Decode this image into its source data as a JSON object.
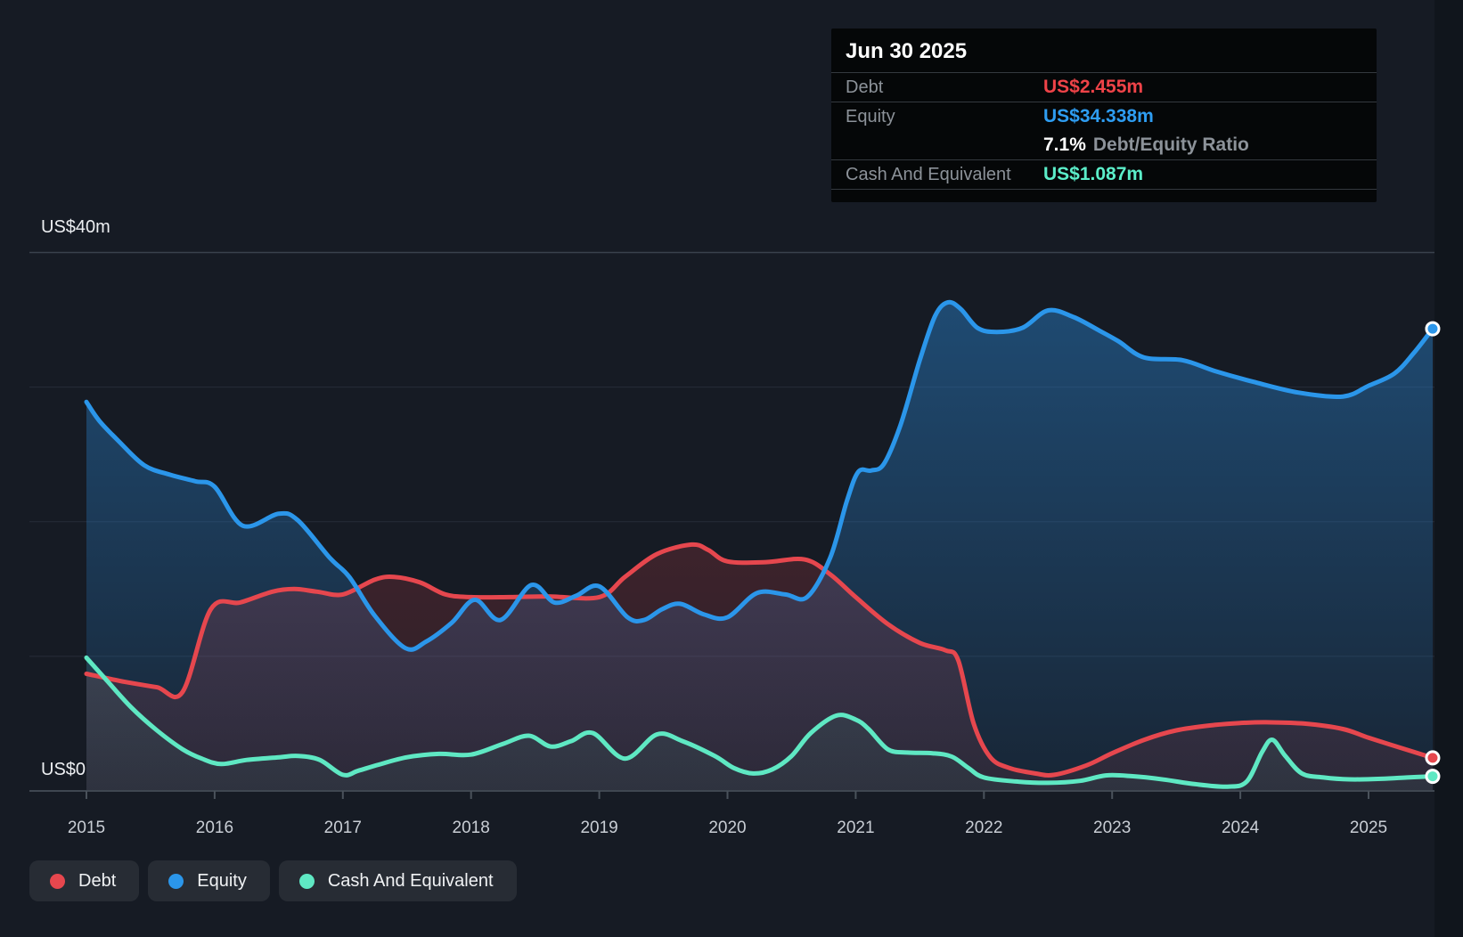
{
  "y_axis": {
    "top_label": "US$40m",
    "zero_label": "US$0"
  },
  "x_axis": {
    "tick_labels": [
      "2015",
      "2016",
      "2017",
      "2018",
      "2019",
      "2020",
      "2021",
      "2022",
      "2023",
      "2024",
      "2025"
    ]
  },
  "tooltip": {
    "title": "Jun 30 2025",
    "debt_label": "Debt",
    "debt_value": "US$2.455m",
    "equity_label": "Equity",
    "equity_value": "US$34.338m",
    "ratio_value": "7.1%",
    "ratio_label": "Debt/Equity Ratio",
    "cash_label": "Cash And Equivalent",
    "cash_value": "US$1.087m"
  },
  "legend": {
    "items": [
      {
        "label": "Debt",
        "color": "#e6474e"
      },
      {
        "label": "Equity",
        "color": "#2b96ea"
      },
      {
        "label": "Cash And Equivalent",
        "color": "#5fe8c3"
      }
    ]
  },
  "colors": {
    "background": "#161b24",
    "outside_band": "#10151c",
    "grid_mid": "#262d38",
    "grid_top": "#3a424d",
    "axis_line": "#3f4751",
    "tick": "#4a525b",
    "debt": "#e6474e",
    "equity": "#2b96ea",
    "cash": "#5fe8c3"
  },
  "chart_data": {
    "type": "area",
    "title": "Debt to Equity history",
    "x_range": [
      2015,
      2025.5
    ],
    "y_range": [
      0,
      40
    ],
    "y_ticks": [
      0,
      10,
      20,
      30,
      40
    ],
    "x_ticks": [
      2015,
      2016,
      2017,
      2018,
      2019,
      2020,
      2021,
      2022,
      2023,
      2024,
      2025
    ],
    "grid": true,
    "legend_position": "bottom-left",
    "end_markers": true,
    "last_point_date": "Jun 30 2025",
    "debt_equity_ratio_pct": 7.1,
    "series": [
      {
        "name": "Equity",
        "color": "#2b96ea",
        "end_value": 34.338,
        "points": [
          [
            2015.0,
            28.9
          ],
          [
            2015.1,
            27.5
          ],
          [
            2015.25,
            26.0
          ],
          [
            2015.45,
            24.2
          ],
          [
            2015.65,
            23.5
          ],
          [
            2015.85,
            23.0
          ],
          [
            2016.0,
            22.6
          ],
          [
            2016.22,
            19.7
          ],
          [
            2016.5,
            20.6
          ],
          [
            2016.65,
            20.1
          ],
          [
            2016.9,
            17.3
          ],
          [
            2017.05,
            15.9
          ],
          [
            2017.25,
            13.0
          ],
          [
            2017.49,
            10.6
          ],
          [
            2017.65,
            11.1
          ],
          [
            2017.85,
            12.5
          ],
          [
            2018.03,
            14.2
          ],
          [
            2018.23,
            12.7
          ],
          [
            2018.47,
            15.3
          ],
          [
            2018.65,
            14.0
          ],
          [
            2018.82,
            14.5
          ],
          [
            2019.0,
            15.2
          ],
          [
            2019.22,
            12.9
          ],
          [
            2019.35,
            12.7
          ],
          [
            2019.49,
            13.5
          ],
          [
            2019.63,
            13.9
          ],
          [
            2019.82,
            13.1
          ],
          [
            2020.0,
            12.9
          ],
          [
            2020.23,
            14.7
          ],
          [
            2020.45,
            14.6
          ],
          [
            2020.62,
            14.4
          ],
          [
            2020.8,
            17.3
          ],
          [
            2020.93,
            21.5
          ],
          [
            2021.02,
            23.7
          ],
          [
            2021.12,
            23.8
          ],
          [
            2021.22,
            24.3
          ],
          [
            2021.35,
            27.2
          ],
          [
            2021.5,
            32.0
          ],
          [
            2021.62,
            35.3
          ],
          [
            2021.72,
            36.3
          ],
          [
            2021.82,
            35.8
          ],
          [
            2021.95,
            34.4
          ],
          [
            2022.1,
            34.1
          ],
          [
            2022.3,
            34.4
          ],
          [
            2022.5,
            35.7
          ],
          [
            2022.7,
            35.2
          ],
          [
            2022.9,
            34.2
          ],
          [
            2023.05,
            33.4
          ],
          [
            2023.25,
            32.2
          ],
          [
            2023.55,
            32.0
          ],
          [
            2023.8,
            31.2
          ],
          [
            2024.1,
            30.4
          ],
          [
            2024.45,
            29.6
          ],
          [
            2024.8,
            29.3
          ],
          [
            2025.0,
            30.1
          ],
          [
            2025.2,
            31.0
          ],
          [
            2025.35,
            32.5
          ],
          [
            2025.5,
            34.338
          ]
        ]
      },
      {
        "name": "Debt",
        "color": "#e6474e",
        "end_value": 2.455,
        "points": [
          [
            2015.0,
            8.7
          ],
          [
            2015.3,
            8.1
          ],
          [
            2015.55,
            7.7
          ],
          [
            2015.75,
            7.35
          ],
          [
            2015.97,
            13.5
          ],
          [
            2016.2,
            14.0
          ],
          [
            2016.45,
            14.8
          ],
          [
            2016.62,
            15.0
          ],
          [
            2016.8,
            14.8
          ],
          [
            2017.0,
            14.6
          ],
          [
            2017.25,
            15.7
          ],
          [
            2017.4,
            15.9
          ],
          [
            2017.6,
            15.5
          ],
          [
            2017.8,
            14.6
          ],
          [
            2018.0,
            14.4
          ],
          [
            2018.3,
            14.4
          ],
          [
            2018.6,
            14.45
          ],
          [
            2019.0,
            14.4
          ],
          [
            2019.2,
            15.9
          ],
          [
            2019.45,
            17.6
          ],
          [
            2019.72,
            18.3
          ],
          [
            2019.85,
            17.9
          ],
          [
            2020.0,
            17.05
          ],
          [
            2020.3,
            17.0
          ],
          [
            2020.6,
            17.2
          ],
          [
            2020.8,
            16.1
          ],
          [
            2021.0,
            14.4
          ],
          [
            2021.25,
            12.4
          ],
          [
            2021.5,
            11.0
          ],
          [
            2021.7,
            10.45
          ],
          [
            2021.8,
            9.7
          ],
          [
            2021.92,
            5.0
          ],
          [
            2022.05,
            2.5
          ],
          [
            2022.2,
            1.7
          ],
          [
            2022.4,
            1.3
          ],
          [
            2022.55,
            1.2
          ],
          [
            2022.8,
            1.9
          ],
          [
            2023.0,
            2.8
          ],
          [
            2023.25,
            3.8
          ],
          [
            2023.5,
            4.5
          ],
          [
            2023.8,
            4.9
          ],
          [
            2024.0,
            5.05
          ],
          [
            2024.2,
            5.1
          ],
          [
            2024.5,
            5.0
          ],
          [
            2024.8,
            4.6
          ],
          [
            2025.0,
            3.95
          ],
          [
            2025.25,
            3.2
          ],
          [
            2025.5,
            2.455
          ]
        ]
      },
      {
        "name": "Cash And Equivalent",
        "color": "#5fe8c3",
        "end_value": 1.087,
        "points": [
          [
            2015.0,
            9.9
          ],
          [
            2015.15,
            8.3
          ],
          [
            2015.35,
            6.2
          ],
          [
            2015.55,
            4.5
          ],
          [
            2015.75,
            3.1
          ],
          [
            2015.9,
            2.4
          ],
          [
            2016.05,
            2.0
          ],
          [
            2016.25,
            2.3
          ],
          [
            2016.5,
            2.5
          ],
          [
            2016.65,
            2.6
          ],
          [
            2016.82,
            2.3
          ],
          [
            2017.0,
            1.2
          ],
          [
            2017.12,
            1.5
          ],
          [
            2017.28,
            1.95
          ],
          [
            2017.5,
            2.5
          ],
          [
            2017.75,
            2.75
          ],
          [
            2018.0,
            2.7
          ],
          [
            2018.25,
            3.5
          ],
          [
            2018.45,
            4.1
          ],
          [
            2018.62,
            3.3
          ],
          [
            2018.78,
            3.7
          ],
          [
            2018.95,
            4.3
          ],
          [
            2019.2,
            2.4
          ],
          [
            2019.45,
            4.2
          ],
          [
            2019.65,
            3.7
          ],
          [
            2019.9,
            2.6
          ],
          [
            2020.05,
            1.7
          ],
          [
            2020.2,
            1.3
          ],
          [
            2020.35,
            1.6
          ],
          [
            2020.5,
            2.6
          ],
          [
            2020.65,
            4.3
          ],
          [
            2020.85,
            5.6
          ],
          [
            2021.0,
            5.3
          ],
          [
            2021.1,
            4.6
          ],
          [
            2021.25,
            3.1
          ],
          [
            2021.4,
            2.85
          ],
          [
            2021.6,
            2.8
          ],
          [
            2021.75,
            2.55
          ],
          [
            2021.88,
            1.7
          ],
          [
            2022.0,
            1.0
          ],
          [
            2022.25,
            0.7
          ],
          [
            2022.5,
            0.6
          ],
          [
            2022.75,
            0.75
          ],
          [
            2022.95,
            1.15
          ],
          [
            2023.15,
            1.1
          ],
          [
            2023.4,
            0.85
          ],
          [
            2023.65,
            0.5
          ],
          [
            2023.9,
            0.32
          ],
          [
            2024.05,
            0.7
          ],
          [
            2024.17,
            2.9
          ],
          [
            2024.25,
            3.8
          ],
          [
            2024.35,
            2.6
          ],
          [
            2024.48,
            1.3
          ],
          [
            2024.65,
            1.0
          ],
          [
            2024.85,
            0.86
          ],
          [
            2025.1,
            0.9
          ],
          [
            2025.3,
            1.0
          ],
          [
            2025.5,
            1.087
          ]
        ]
      }
    ]
  }
}
